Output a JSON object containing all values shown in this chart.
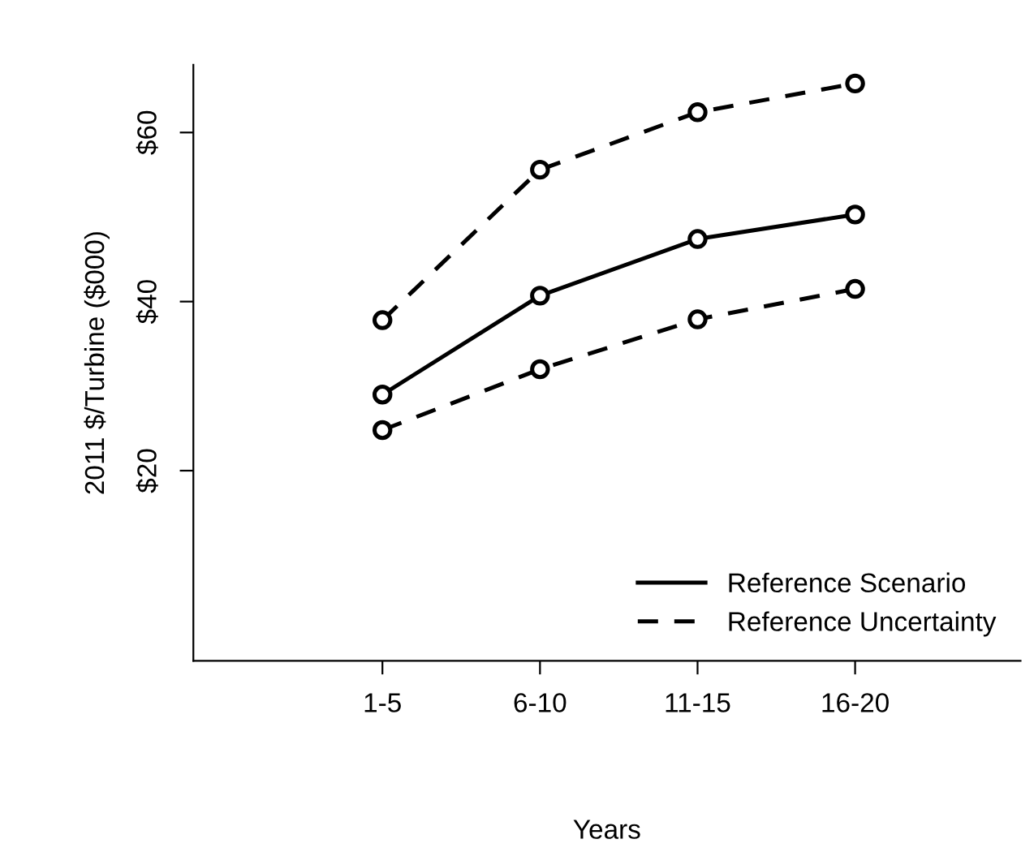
{
  "chart_data": {
    "type": "line",
    "xlabel": "Years",
    "ylabel": "2011 $/Turbine ($000)",
    "categories": [
      "1-5",
      "6-10",
      "11-15",
      "16-20"
    ],
    "series": [
      {
        "name": "Reference Scenario",
        "color": "#000000",
        "line_style": "solid",
        "values": [
          29.0,
          40.7,
          47.4,
          50.3
        ]
      },
      {
        "name": "Reference Uncertainty",
        "color": "#000000",
        "line_style": "dashed",
        "values": [
          37.8,
          55.6,
          62.4,
          65.8
        ]
      },
      {
        "color": "#000000",
        "line_style": "dashed",
        "values": [
          24.8,
          32.0,
          37.9,
          41.5
        ]
      }
    ],
    "ylim": [
      -2.5,
      68
    ],
    "yticks": [
      {
        "value": 20,
        "label": "$20"
      },
      {
        "value": 40,
        "label": "$40"
      },
      {
        "value": 60,
        "label": "$60"
      }
    ],
    "marker": "circle",
    "grid": false,
    "legend": "bottom right"
  }
}
